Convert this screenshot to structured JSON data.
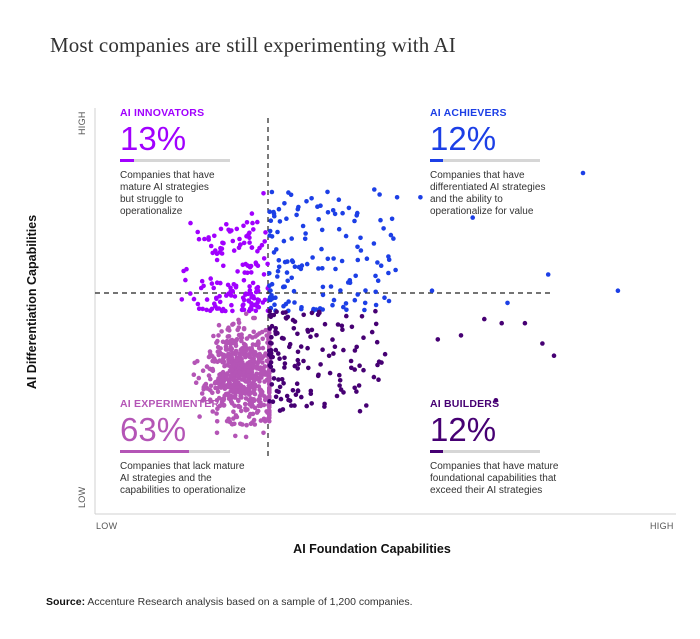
{
  "title": "Most companies are still experimenting with AI",
  "axes": {
    "ylabel": "AI Differentiation Capabilities",
    "xlabel": "AI Foundation Capabilities",
    "x_low": "LOW",
    "x_high": "HIGH",
    "y_low": "LOW",
    "y_high": "HIGH"
  },
  "quadrants": {
    "innovators": {
      "name": "AI INNOVATORS",
      "pct": "13%",
      "share": 0.13,
      "desc": [
        "Companies that have",
        "mature AI strategies",
        "but struggle to",
        "operationalize"
      ],
      "color": "#a100ff"
    },
    "achievers": {
      "name": "AI ACHIEVERS",
      "pct": "12%",
      "share": 0.12,
      "desc": [
        "Companies that have",
        "differentiated AI strategies",
        "and the ability to",
        "operationalize for value"
      ],
      "color": "#1c3fe6"
    },
    "experimenters": {
      "name": "AI EXPERIMENTERS",
      "pct": "63%",
      "share": 0.63,
      "desc": [
        "Companies that lack mature",
        "AI strategies and the",
        "capabilities to operationalize"
      ],
      "color": "#b455b6"
    },
    "builders": {
      "name": "AI BUILDERS",
      "pct": "12%",
      "share": 0.12,
      "desc": [
        "Companies that have mature",
        "foundational capabilities that",
        "exceed their AI strategies"
      ],
      "color": "#460073"
    }
  },
  "source": {
    "label": "Source:",
    "text": " Accenture Research analysis based on a sample of 1,200 companies."
  },
  "chart_data": {
    "type": "scatter",
    "title": "Most companies are still experimenting with AI",
    "xlabel": "AI Foundation Capabilities",
    "ylabel": "AI Differentiation Capabilities",
    "x_ticks": [
      "LOW",
      "HIGH"
    ],
    "y_ticks": [
      "LOW",
      "HIGH"
    ],
    "divider": {
      "x": 0.3,
      "y": 0.5
    },
    "xlim": [
      0,
      1
    ],
    "ylim": [
      0,
      1
    ],
    "sample_size": 1200,
    "series": [
      {
        "name": "AI INNOVATORS",
        "share": 0.13,
        "color": "#a100ff",
        "region": {
          "x": [
            0.14,
            0.3
          ],
          "y": [
            0.5,
            0.72
          ]
        },
        "count": 150,
        "outliers": [
          [
            0.29,
            0.79
          ],
          [
            0.27,
            0.74
          ],
          [
            0.23,
            0.7
          ],
          [
            0.2,
            0.66
          ]
        ]
      },
      {
        "name": "AI ACHIEVERS",
        "share": 0.12,
        "color": "#1c3fe6",
        "region": {
          "x": [
            0.3,
            0.52
          ],
          "y": [
            0.5,
            0.8
          ]
        },
        "count": 140,
        "outliers": [
          [
            0.84,
            0.84
          ],
          [
            0.9,
            0.55
          ],
          [
            0.78,
            0.59
          ],
          [
            0.65,
            0.73
          ],
          [
            0.56,
            0.78
          ],
          [
            0.52,
            0.78
          ],
          [
            0.71,
            0.52
          ],
          [
            0.58,
            0.55
          ]
        ]
      },
      {
        "name": "AI EXPERIMENTERS",
        "share": 0.63,
        "color": "#b455b6",
        "region": {
          "x": [
            0.13,
            0.3
          ],
          "y": [
            0.19,
            0.5
          ]
        },
        "count": 620,
        "outliers": [
          [
            0.29,
            0.2
          ],
          [
            0.26,
            0.19
          ],
          [
            0.21,
            0.2
          ],
          [
            0.18,
            0.24
          ]
        ]
      },
      {
        "name": "AI BUILDERS",
        "share": 0.12,
        "color": "#460073",
        "region": {
          "x": [
            0.3,
            0.5
          ],
          "y": [
            0.25,
            0.5
          ]
        },
        "count": 140,
        "outliers": [
          [
            0.79,
            0.39
          ],
          [
            0.77,
            0.42
          ],
          [
            0.7,
            0.47
          ],
          [
            0.69,
            0.28
          ],
          [
            0.63,
            0.44
          ],
          [
            0.59,
            0.43
          ],
          [
            0.67,
            0.48
          ],
          [
            0.74,
            0.47
          ]
        ]
      }
    ]
  }
}
